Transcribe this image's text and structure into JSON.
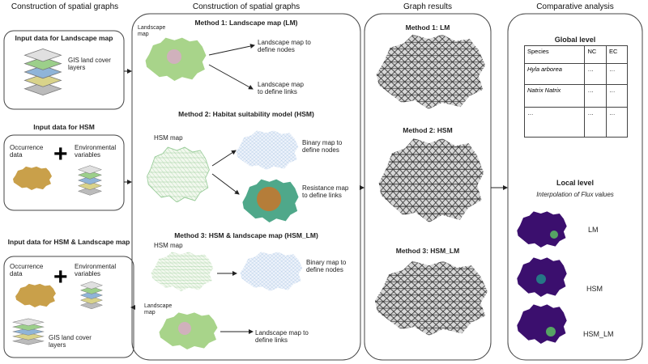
{
  "input_data": {
    "header": "Construction of spatial graphs",
    "landscape": {
      "title": "Input data for Landscape map",
      "layers": "GIS land cover layers"
    },
    "hsm": {
      "title": "Input data for HSM",
      "occurrence": "Occurrence data",
      "environmental": "Environmental variables"
    },
    "hsm_landscape": {
      "title": "Input data for HSM & Landscape map",
      "occurrence": "Occurrence data",
      "environmental": "Environmental variables",
      "layers": "GIS land cover layers"
    }
  },
  "construction": {
    "header": "Construction of spatial graphs",
    "methods": [
      {
        "title": "Method 1: Landscape map (LM)",
        "labels": [
          "Landscape map",
          "Landscape map to define nodes",
          "Landscape map to define links"
        ]
      },
      {
        "title": "Method 2: Habitat suitability model (HSM)",
        "labels": [
          "HSM map",
          "Binary map to define nodes",
          "Resistance map to define links"
        ]
      },
      {
        "title": "Method 3: HSM & landscape map (HSM_LM)",
        "labels": [
          "HSM map",
          "Binary map to define nodes",
          "Landscape map",
          "Landscape map to define links"
        ]
      }
    ]
  },
  "graph_results": {
    "header": "Graph results",
    "panels": [
      "Method 1: LM",
      "Method 2: HSM",
      "Method 3: HSM_LM"
    ]
  },
  "comparative": {
    "header": "Comparative analysis",
    "global": {
      "title": "Global level",
      "table": {
        "columns": [
          "Species",
          "NC",
          "EC"
        ],
        "rows": [
          [
            "Hyla arborea",
            "…",
            "…"
          ],
          [
            "Natrix Natrix",
            "…",
            "…"
          ],
          [
            "…",
            "…",
            "…"
          ]
        ]
      }
    },
    "local": {
      "title": "Local level",
      "subtitle": "Interpolation of Flux values",
      "maps": [
        "LM",
        "HSM",
        "HSM_LM"
      ]
    }
  }
}
